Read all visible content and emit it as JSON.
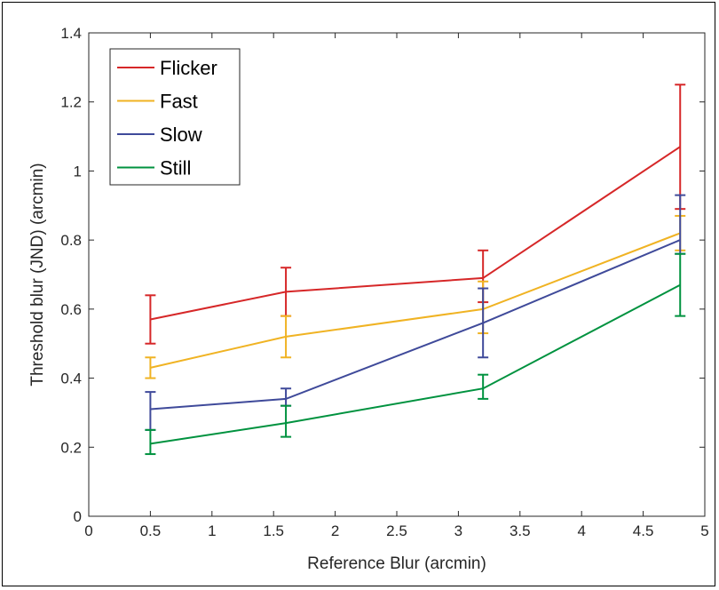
{
  "chart_data": {
    "type": "line",
    "title": "",
    "xlabel": "Reference Blur (arcmin)",
    "ylabel": "Threshold blur (JND) (arcmin)",
    "xlim": [
      0,
      5
    ],
    "ylim": [
      0,
      1.4
    ],
    "xticks": [
      0,
      0.5,
      1,
      1.5,
      2,
      2.5,
      3,
      3.5,
      4,
      4.5,
      5
    ],
    "xtick_labels": [
      "0",
      "0.5",
      "1",
      "1.5",
      "2",
      "2.5",
      "3",
      "3.5",
      "4",
      "4.5",
      "5"
    ],
    "yticks": [
      0,
      0.2,
      0.4,
      0.6,
      0.8,
      1.0,
      1.2,
      1.4
    ],
    "ytick_labels": [
      "0",
      "0.2",
      "0.4",
      "0.6",
      "0.8",
      "1",
      "1.2",
      "1.4"
    ],
    "grid": false,
    "legend_position": "top-left",
    "x": [
      0.5,
      1.6,
      3.2,
      4.8
    ],
    "series": [
      {
        "name": "Flicker",
        "color": "#d62728",
        "values": [
          0.57,
          0.65,
          0.69,
          1.07
        ],
        "err_low": [
          0.5,
          0.58,
          0.62,
          0.89
        ],
        "err_high": [
          0.64,
          0.72,
          0.77,
          1.25
        ]
      },
      {
        "name": "Fast",
        "color": "#f0b323",
        "values": [
          0.43,
          0.52,
          0.6,
          0.82
        ],
        "err_low": [
          0.4,
          0.46,
          0.53,
          0.77
        ],
        "err_high": [
          0.46,
          0.58,
          0.68,
          0.87
        ]
      },
      {
        "name": "Slow",
        "color": "#3f4a9a",
        "values": [
          0.31,
          0.34,
          0.56,
          0.8
        ],
        "err_low": [
          0.25,
          0.32,
          0.46,
          0.76
        ],
        "err_high": [
          0.36,
          0.37,
          0.66,
          0.93
        ]
      },
      {
        "name": "Still",
        "color": "#00923f",
        "values": [
          0.21,
          0.27,
          0.37,
          0.67
        ],
        "err_low": [
          0.18,
          0.23,
          0.34,
          0.58
        ],
        "err_high": [
          0.25,
          0.32,
          0.41,
          0.76
        ]
      }
    ]
  }
}
